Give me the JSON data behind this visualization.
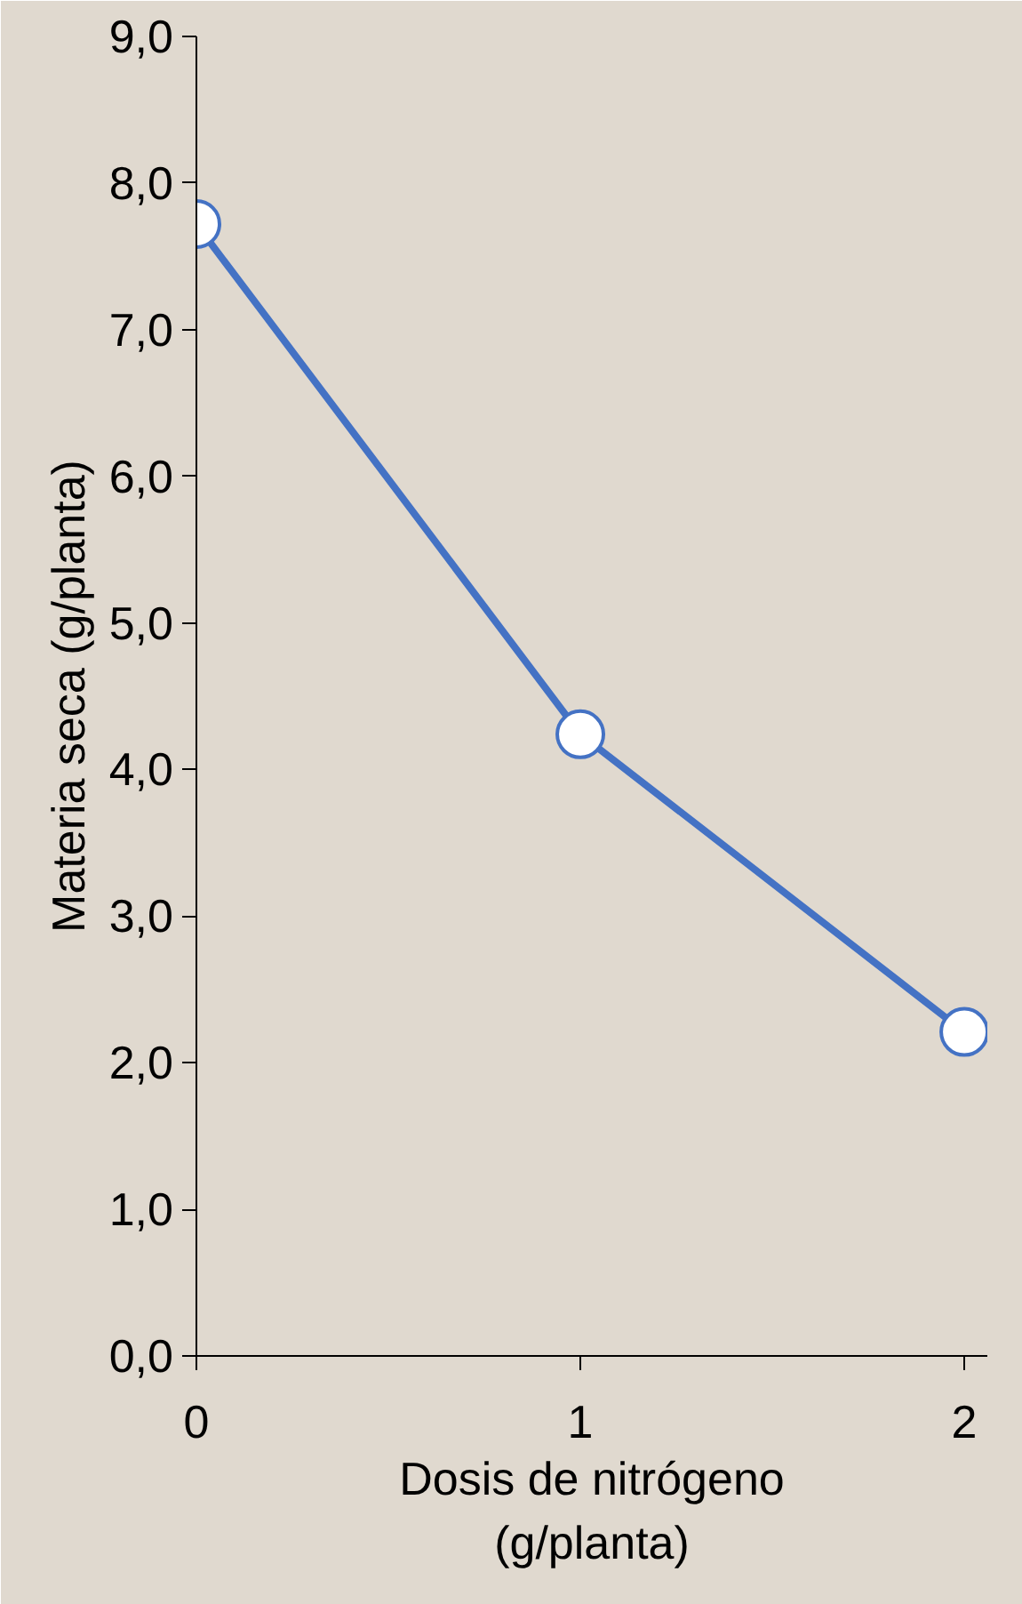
{
  "chart_data": {
    "type": "line",
    "xlabel": "Dosis de nitrógeno\n(g/planta)",
    "ylabel": "Materia seca (g/planta)",
    "x": [
      0,
      1,
      2
    ],
    "series": [
      {
        "color": "#4472c4",
        "values": [
          7.72,
          4.24,
          2.21
        ]
      }
    ],
    "xlim": [
      0,
      2.06
    ],
    "xticks": [
      0,
      1,
      2
    ],
    "ylim": [
      0,
      9
    ],
    "yticks": [
      {
        "value": 0,
        "label": "0,0"
      },
      {
        "value": 1,
        "label": "1,0"
      },
      {
        "value": 2,
        "label": "2,0"
      },
      {
        "value": 3,
        "label": "3,0"
      },
      {
        "value": 4,
        "label": "4,0"
      },
      {
        "value": 5,
        "label": "5,0"
      },
      {
        "value": 6,
        "label": "6,0"
      },
      {
        "value": 7,
        "label": "7,0"
      },
      {
        "value": 8,
        "label": "8,0"
      },
      {
        "value": 9,
        "label": "9,0"
      }
    ],
    "grid": false,
    "marker": "circle",
    "line_style": "solid"
  }
}
